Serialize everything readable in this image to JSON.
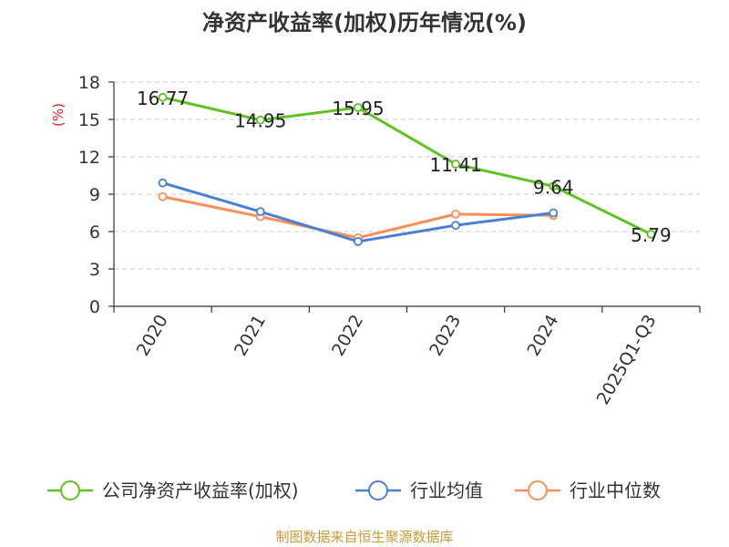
{
  "chart_data": {
    "type": "line",
    "title": "净资产收益率(加权)历年情况(%)",
    "xlabel": "",
    "ylabel": "(%)",
    "categories": [
      "2020",
      "2021",
      "2022",
      "2023",
      "2024",
      "2025Q1-Q3"
    ],
    "ylim": [
      0,
      18
    ],
    "yticks": [
      0,
      3,
      6,
      9,
      12,
      15,
      18
    ],
    "grid": true,
    "legend_position": "bottom",
    "series": [
      {
        "name": "公司净资产收益率(加权)",
        "color": "#5fc21f",
        "values": [
          16.77,
          14.95,
          15.95,
          11.41,
          9.64,
          5.79
        ],
        "data_labels": [
          "16.77",
          "14.95",
          "15.95",
          "11.41",
          "9.64",
          "5.79"
        ]
      },
      {
        "name": "行业均值",
        "color": "#4a7fd6",
        "values": [
          9.9,
          7.6,
          5.2,
          6.5,
          7.5,
          null
        ]
      },
      {
        "name": "行业中位数",
        "color": "#f5905a",
        "values": [
          8.8,
          7.2,
          5.5,
          7.4,
          7.3,
          null
        ]
      }
    ],
    "ylabel_color": "#e02020"
  },
  "source": {
    "text": "制图数据来自恒生聚源数据库",
    "color": "#c99a3a"
  }
}
